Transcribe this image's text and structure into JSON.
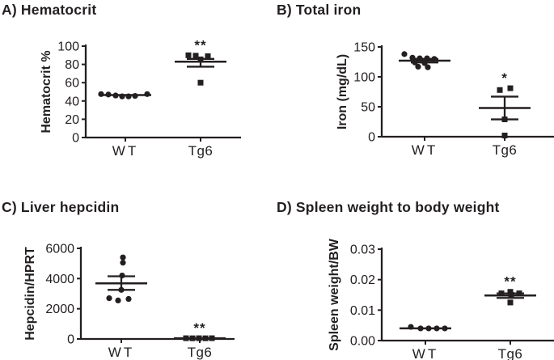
{
  "colors": {
    "ink": "#231f20",
    "background": "#ffffff"
  },
  "chart_data": [
    {
      "id": "A",
      "type": "scatter",
      "title": "A) Hematocrit",
      "ylabel": "Hematocrit %",
      "xlabel": "",
      "ylim": [
        0,
        100
      ],
      "ytick_values": [
        0,
        20,
        40,
        60,
        80,
        100
      ],
      "ytick_labels": [
        "0",
        "20",
        "40",
        "60",
        "80",
        "100"
      ],
      "categories": [
        "WT",
        "Tg6"
      ],
      "legend": "none",
      "grid": false,
      "groups": [
        {
          "name": "WT",
          "marker": "circle",
          "values": [
            47.5,
            47,
            46,
            45,
            45,
            45.5,
            47.5
          ],
          "jitter": [
            -30,
            -21,
            -12,
            -4,
            4,
            12,
            27
          ],
          "mean": 46.5,
          "err_low": null,
          "err_high": null,
          "significance": null
        },
        {
          "name": "Tg6",
          "marker": "square",
          "values": [
            90,
            89.5,
            89,
            85.5,
            60
          ],
          "jitter": [
            -15,
            -6,
            9,
            0,
            0
          ],
          "mean": 83,
          "err_low": 77.5,
          "err_high": 86,
          "significance": "**"
        }
      ]
    },
    {
      "id": "B",
      "type": "scatter",
      "title": "B) Total iron",
      "ylabel": "Iron (mg/dL)",
      "xlabel": "",
      "ylim": [
        0,
        150
      ],
      "ytick_values": [
        0,
        50,
        100,
        150
      ],
      "ytick_labels": [
        "0",
        "50",
        "100",
        "150"
      ],
      "categories": [
        "WT",
        "Tg6"
      ],
      "legend": "none",
      "grid": false,
      "groups": [
        {
          "name": "WT",
          "marker": "circle",
          "values": [
            138,
            132,
            131,
            131,
            130,
            124,
            123,
            117,
            116
          ],
          "jitter": [
            -25,
            -15,
            -6,
            3,
            12,
            -12,
            0,
            -8,
            4
          ],
          "mean": 127,
          "err_low": 124,
          "err_high": 130,
          "significance": null
        },
        {
          "name": "Tg6",
          "marker": "square",
          "values": [
            81,
            78,
            29,
            2
          ],
          "jitter": [
            7,
            -6,
            0,
            0
          ],
          "mean": 48,
          "err_low": 29,
          "err_high": 67,
          "significance": "*"
        }
      ]
    },
    {
      "id": "C",
      "type": "scatter",
      "title": "C) Liver hepcidin",
      "ylabel": "Hepcidin/HPRT",
      "xlabel": "",
      "ylim": [
        0,
        6000
      ],
      "ytick_values": [
        0,
        2000,
        4000,
        6000
      ],
      "ytick_labels": [
        "0",
        "2000",
        "4000",
        "6000"
      ],
      "categories": [
        "WT",
        "Tg6"
      ],
      "legend": "none",
      "grid": false,
      "groups": [
        {
          "name": "WT",
          "marker": "circle",
          "values": [
            5400,
            5050,
            4200,
            3250,
            2700,
            2550,
            2650
          ],
          "jitter": [
            2,
            2,
            1,
            0,
            -15,
            -4,
            9
          ],
          "mean": 3680,
          "err_low": 3250,
          "err_high": 4150,
          "significance": null
        },
        {
          "name": "Tg6",
          "marker": "square",
          "values": [
            50,
            45,
            50,
            45,
            50
          ],
          "jitter": [
            -17,
            -9,
            -1,
            7,
            15
          ],
          "mean": 50,
          "err_low": null,
          "err_high": null,
          "significance": "**"
        }
      ]
    },
    {
      "id": "D",
      "type": "scatter",
      "title": "D) Spleen weight to body weight",
      "ylabel": "Spleen weight/BW",
      "xlabel": "",
      "ylim": [
        0,
        0.03
      ],
      "ytick_values": [
        0,
        0.01,
        0.02,
        0.03
      ],
      "ytick_labels": [
        "0.00",
        "0.01",
        "0.02",
        "0.03"
      ],
      "categories": [
        "WT",
        "Tg6"
      ],
      "legend": "none",
      "grid": false,
      "groups": [
        {
          "name": "WT",
          "marker": "circle",
          "values": [
            0.0045,
            0.004,
            0.004,
            0.004,
            0.004
          ],
          "jitter": [
            -18,
            -6,
            4,
            14,
            24
          ],
          "mean": 0.004,
          "err_low": null,
          "err_high": null,
          "significance": null
        },
        {
          "name": "Tg6",
          "marker": "square",
          "values": [
            0.016,
            0.0155,
            0.0155,
            0.015,
            0.0125
          ],
          "jitter": [
            0,
            -11,
            11,
            1,
            0
          ],
          "mean": 0.0148,
          "err_low": 0.014,
          "err_high": 0.0155,
          "significance": "**"
        }
      ]
    }
  ]
}
